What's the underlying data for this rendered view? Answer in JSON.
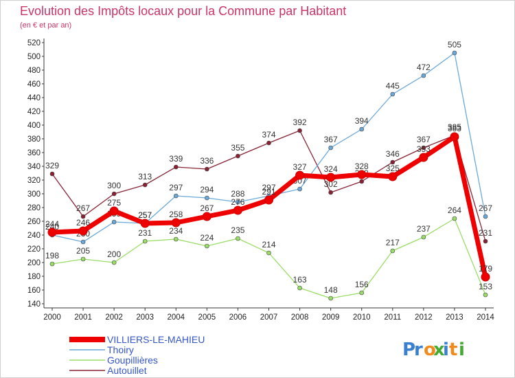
{
  "chart_data": {
    "type": "line",
    "title": "Evolution des Impôts locaux pour la Commune par Habitant",
    "subtitle": "(en € et par an)",
    "xlabel": "",
    "ylabel": "",
    "x": [
      "2000",
      "2001",
      "2002",
      "2003",
      "2004",
      "2005",
      "2006",
      "2007",
      "2008",
      "2009",
      "2010",
      "2011",
      "2012",
      "2013",
      "2014"
    ],
    "ylim": [
      140,
      520
    ],
    "yticks": [
      140,
      160,
      180,
      200,
      220,
      240,
      260,
      280,
      300,
      320,
      340,
      360,
      380,
      400,
      420,
      440,
      460,
      480,
      500,
      520
    ],
    "grid": false,
    "legend_position": "bottom-left",
    "series": [
      {
        "name": "VILLIERS-LE-MAHIEU",
        "color": "#ee0000",
        "values": [
          244,
          246,
          275,
          257,
          258,
          267,
          276,
          291,
          327,
          324,
          328,
          325,
          353,
          383,
          179
        ]
      },
      {
        "name": "Thoiry",
        "color": "#6aa8d8",
        "values": [
          240,
          230,
          259,
          257,
          297,
          294,
          288,
          297,
          307,
          367,
          394,
          445,
          472,
          505,
          267
        ]
      },
      {
        "name": "Goupillières",
        "color": "#99dd66",
        "values": [
          198,
          205,
          200,
          231,
          234,
          224,
          235,
          214,
          163,
          148,
          156,
          217,
          237,
          264,
          153
        ]
      },
      {
        "name": "Autouillet",
        "color": "#882233",
        "values": [
          329,
          267,
          300,
          313,
          339,
          336,
          355,
          374,
          392,
          302,
          318,
          346,
          367,
          385,
          231
        ]
      }
    ]
  },
  "brand": {
    "letters": [
      "P",
      "r",
      "o",
      "x",
      "i",
      "t",
      "i"
    ],
    "colors": [
      "#3a7fd0",
      "#3a7fd0",
      "#f08a1c",
      "#44aa33",
      "#3a7fd0",
      "#f08a1c",
      "#44aa33"
    ]
  }
}
